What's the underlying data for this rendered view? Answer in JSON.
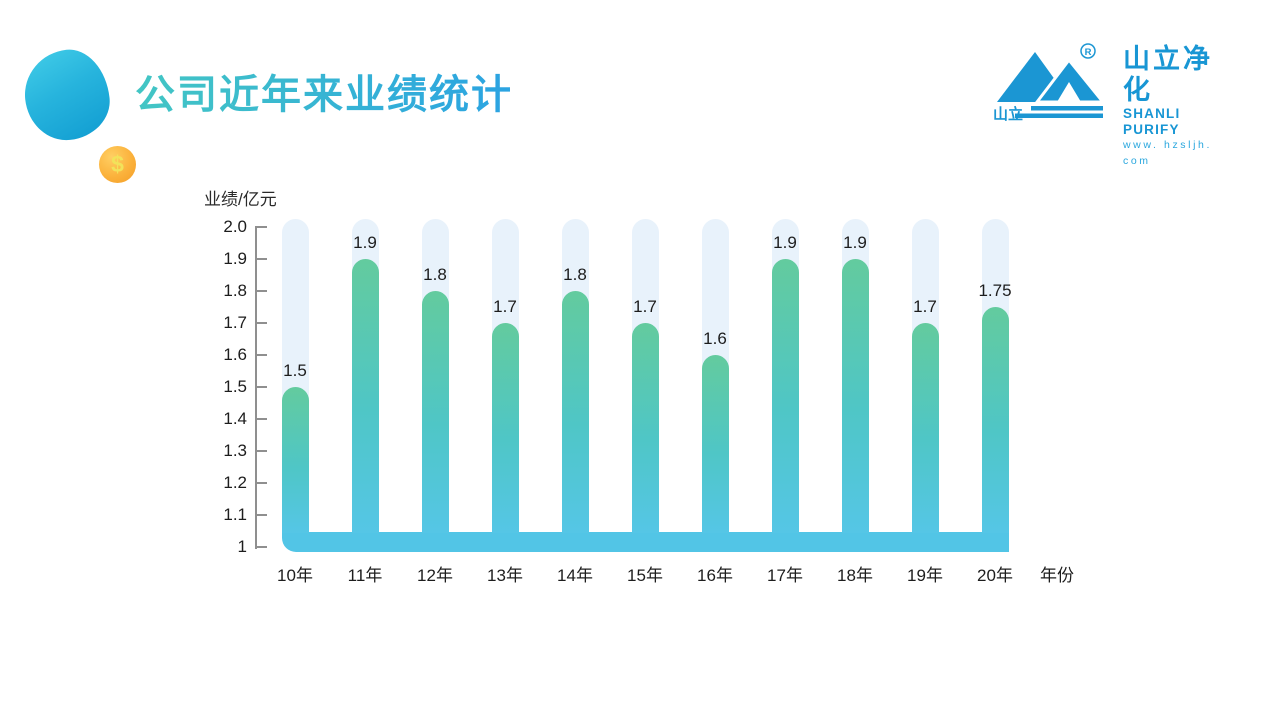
{
  "header": {
    "title": "公司近年来业绩统计",
    "coin_symbol": "$"
  },
  "logo": {
    "name_cn": "山立净化",
    "name_en": "SHANLI PURIFY",
    "website": "www. hzsljh. com",
    "mark_label": "山立",
    "registered_mark": "R"
  },
  "chart_data": {
    "type": "bar",
    "title": "公司近年来业绩统计",
    "ylabel": "业绩/亿元",
    "xlabel": "年份",
    "categories": [
      "10年",
      "11年",
      "12年",
      "13年",
      "14年",
      "15年",
      "16年",
      "17年",
      "18年",
      "19年",
      "20年"
    ],
    "values": [
      1.5,
      1.9,
      1.8,
      1.7,
      1.8,
      1.7,
      1.6,
      1.9,
      1.9,
      1.7,
      1.75
    ],
    "value_labels": [
      "1.5",
      "1.9",
      "1.8",
      "1.7",
      "1.8",
      "1.7",
      "1.6",
      "1.9",
      "1.9",
      "1.7",
      "1.75"
    ],
    "ylim": [
      1,
      2
    ],
    "ytick_labels": [
      "2.0",
      "1.9",
      "1.8",
      "1.7",
      "1.6",
      "1.5",
      "1.4",
      "1.3",
      "1.2",
      "1.1",
      "1"
    ],
    "grid": false,
    "legend": false,
    "colors": {
      "track": "#E8F2FB",
      "bar_top": "#63CB9E",
      "bar_mid": "#4FC6C6",
      "bar_bottom": "#55C6E6",
      "baseline_band": "#52C5E6",
      "axis": "#8F8F8F",
      "label": "#1D1D1D",
      "logo_blue": "#1B96D3",
      "title_gradient_start": "#43C6C4",
      "title_gradient_end": "#2BA3E2",
      "coin_orange": "#F7A62D",
      "blob_teal": "#1BA6D6"
    }
  }
}
